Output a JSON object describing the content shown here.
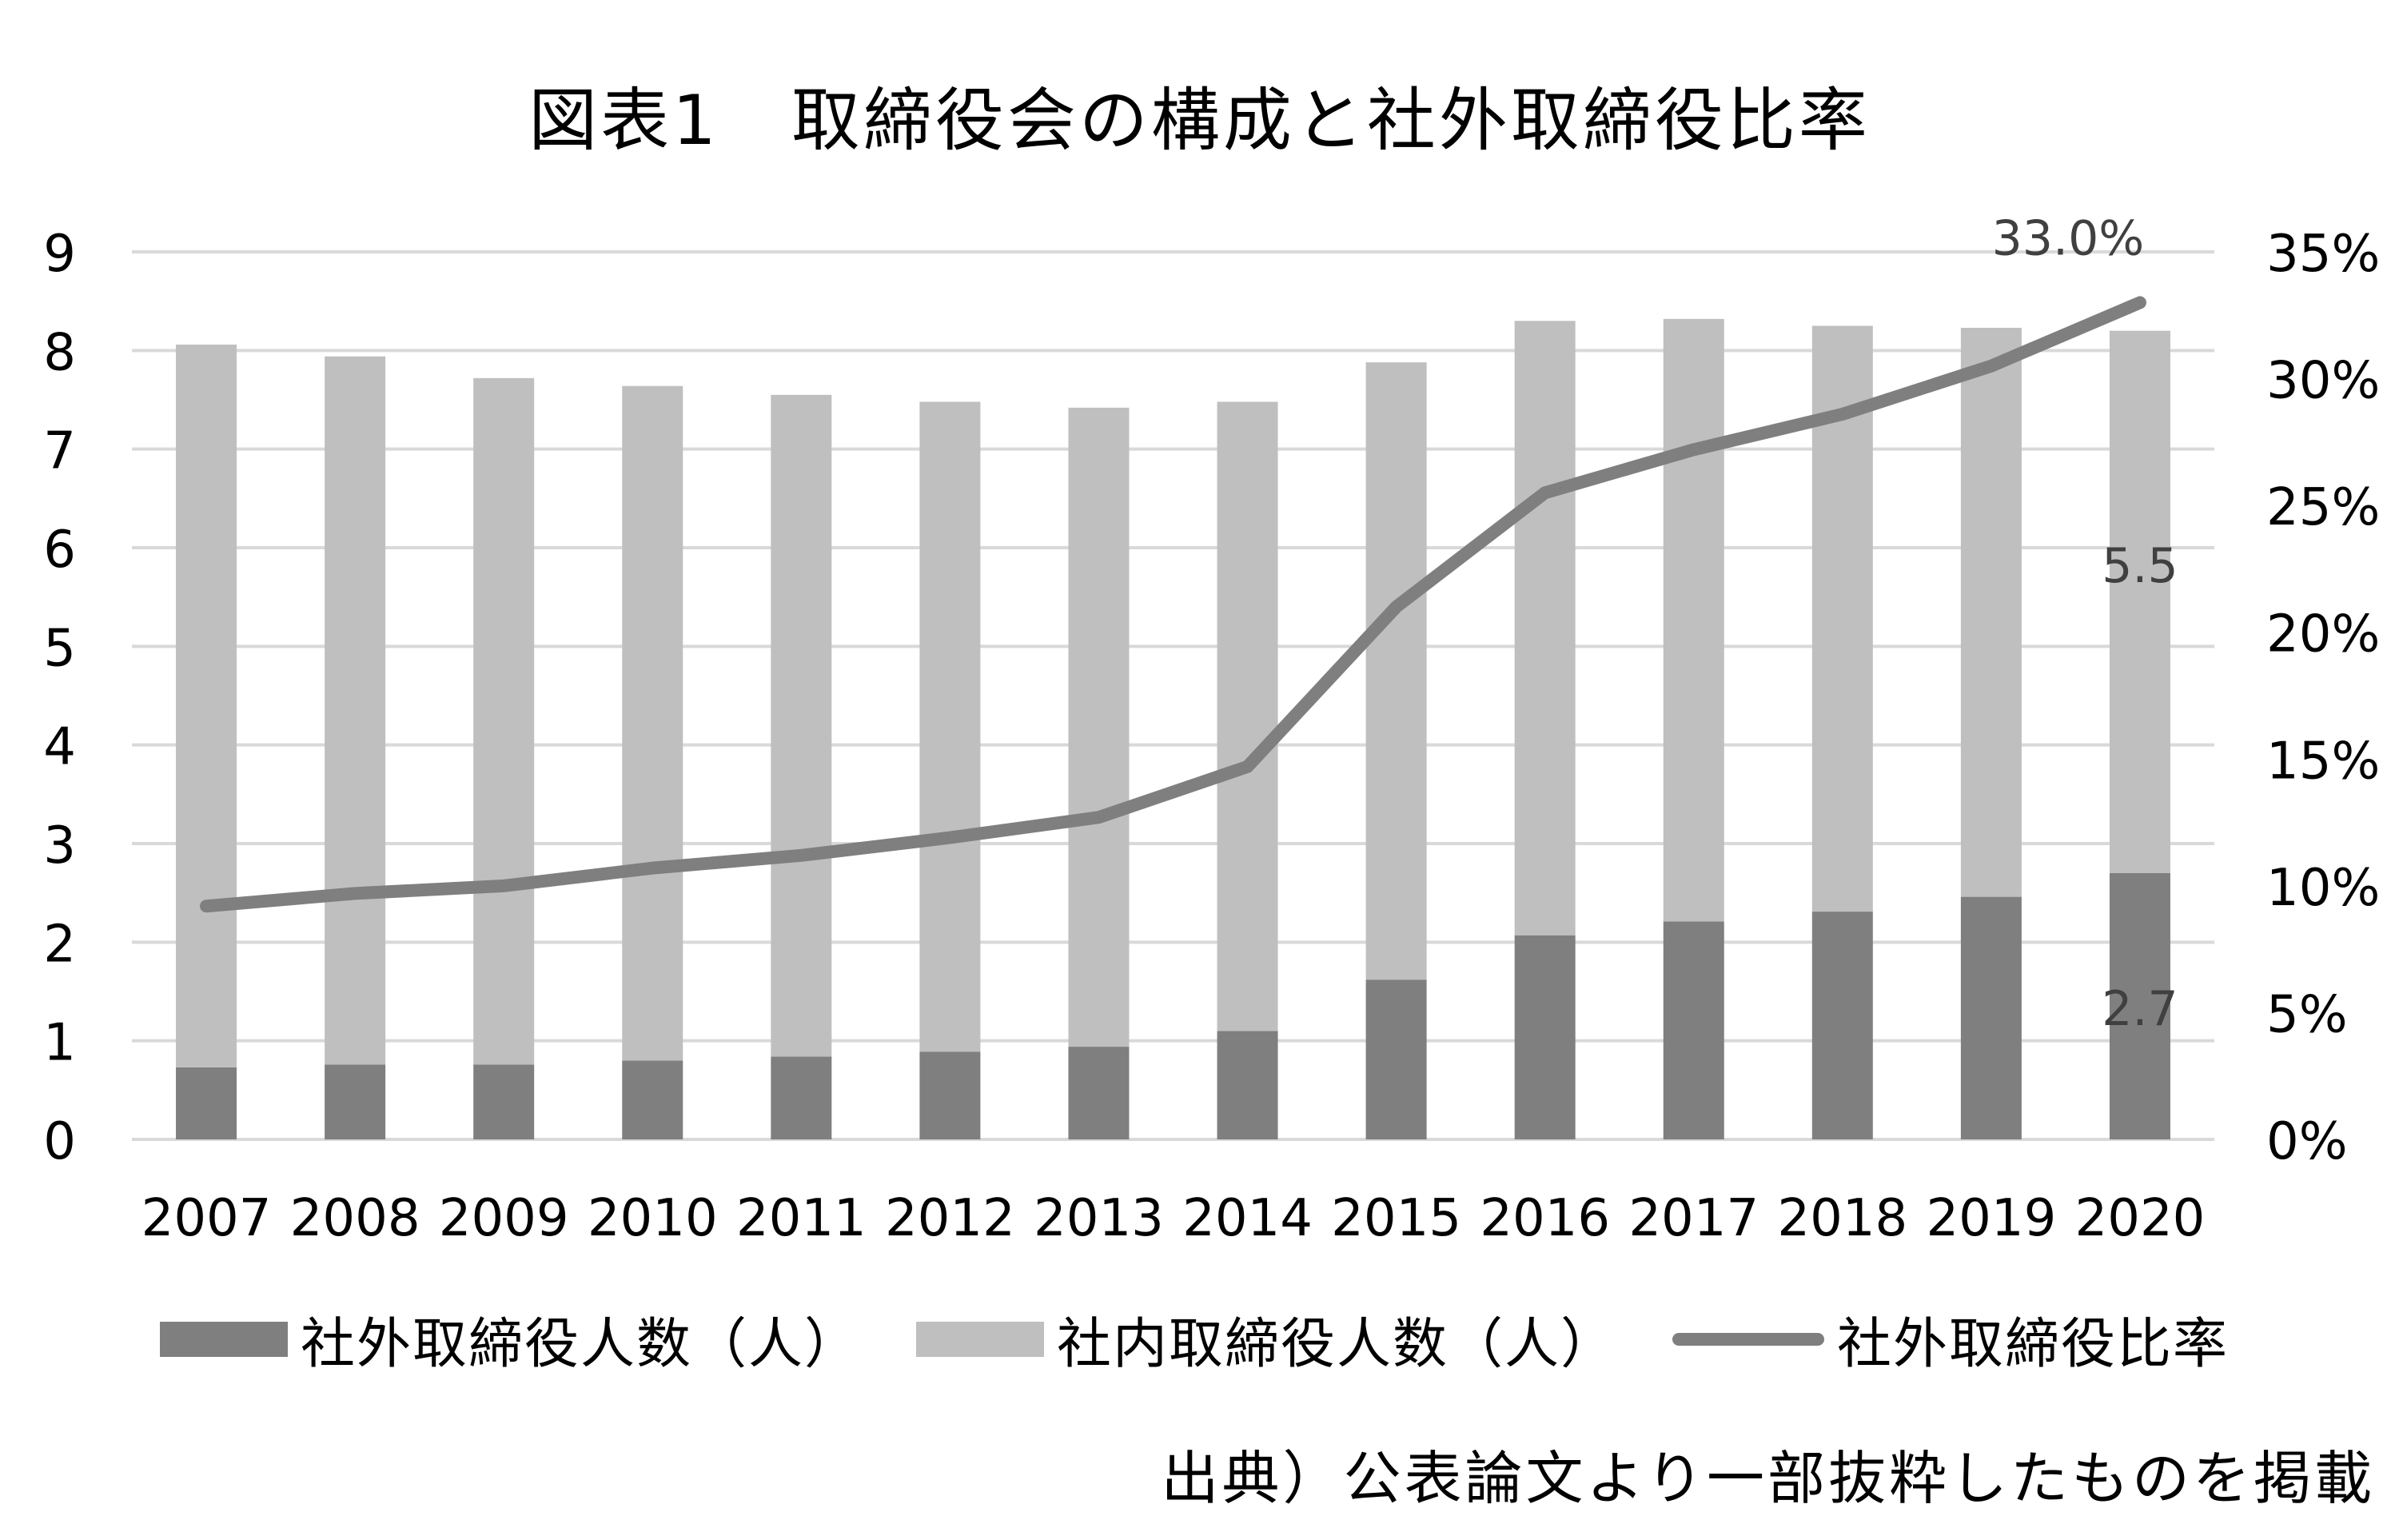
{
  "title": "図表1　取締役会の構成と社外取締役比率",
  "source_note": "出典）公表論文より一部抜粋したものを掲載",
  "colors": {
    "outside_bar": "#7f7f7f",
    "inside_bar": "#bfbfbf",
    "ratio_line": "#7f7f7f",
    "grid": "#d9d9d9"
  },
  "chart_data": {
    "type": "bar",
    "stacked": true,
    "categories": [
      "2007",
      "2008",
      "2009",
      "2010",
      "2011",
      "2012",
      "2013",
      "2014",
      "2015",
      "2016",
      "2017",
      "2018",
      "2019",
      "2020"
    ],
    "series": [
      {
        "name": "社外取締役人数（人）",
        "type": "bar",
        "axis": "left",
        "values": [
          0.73,
          0.76,
          0.76,
          0.8,
          0.84,
          0.89,
          0.94,
          1.1,
          1.62,
          2.07,
          2.21,
          2.31,
          2.46,
          2.7
        ]
      },
      {
        "name": "社内取締役人数（人）",
        "type": "bar",
        "axis": "left",
        "values": [
          7.33,
          7.18,
          6.96,
          6.84,
          6.71,
          6.59,
          6.48,
          6.38,
          6.26,
          6.23,
          6.11,
          5.94,
          5.77,
          5.5
        ]
      },
      {
        "name": "社外取締役比率",
        "type": "line",
        "axis": "right",
        "values": [
          9.2,
          9.7,
          10.0,
          10.7,
          11.2,
          11.9,
          12.7,
          14.7,
          21.0,
          25.5,
          27.2,
          28.6,
          30.5,
          33.0
        ]
      }
    ],
    "left_axis": {
      "ylim": [
        0,
        9
      ],
      "ticks": [
        "0",
        "1",
        "2",
        "3",
        "4",
        "5",
        "6",
        "7",
        "8",
        "9"
      ]
    },
    "right_axis": {
      "ylim": [
        0,
        35
      ],
      "ticks": [
        "0%",
        "5%",
        "10%",
        "15%",
        "20%",
        "25%",
        "30%",
        "35%"
      ]
    },
    "data_labels": {
      "outside_2020": "2.7",
      "inside_2020": "5.5",
      "ratio_2020": "33.0%"
    },
    "grid": true,
    "legend_position": "bottom"
  }
}
